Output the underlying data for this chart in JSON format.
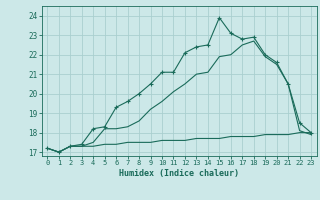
{
  "xlabel": "Humidex (Indice chaleur)",
  "bg_color": "#cce8e8",
  "grid_color": "#aacfcf",
  "line_color": "#1a6b5a",
  "xlim": [
    -0.5,
    23.5
  ],
  "ylim": [
    16.8,
    24.5
  ],
  "yticks": [
    17,
    18,
    19,
    20,
    21,
    22,
    23,
    24
  ],
  "xticks": [
    0,
    1,
    2,
    3,
    4,
    5,
    6,
    7,
    8,
    9,
    10,
    11,
    12,
    13,
    14,
    15,
    16,
    17,
    18,
    19,
    20,
    21,
    22,
    23
  ],
  "line1_x": [
    0,
    1,
    2,
    3,
    4,
    5,
    6,
    7,
    8,
    9,
    10,
    11,
    12,
    13,
    14,
    15,
    16,
    17,
    18,
    19,
    20,
    21,
    22,
    23
  ],
  "line1_y": [
    17.2,
    17.0,
    17.3,
    17.3,
    17.3,
    17.4,
    17.4,
    17.5,
    17.5,
    17.5,
    17.6,
    17.6,
    17.6,
    17.7,
    17.7,
    17.7,
    17.8,
    17.8,
    17.8,
    17.9,
    17.9,
    17.9,
    18.0,
    18.0
  ],
  "line2_x": [
    0,
    1,
    2,
    3,
    4,
    5,
    6,
    7,
    8,
    9,
    10,
    11,
    12,
    13,
    14,
    15,
    16,
    17,
    18,
    19,
    20,
    21,
    22,
    23
  ],
  "line2_y": [
    17.2,
    17.0,
    17.3,
    17.3,
    17.5,
    18.2,
    18.2,
    18.3,
    18.6,
    19.2,
    19.6,
    20.1,
    20.5,
    21.0,
    21.1,
    21.9,
    22.0,
    22.5,
    22.7,
    21.9,
    21.5,
    20.5,
    18.1,
    17.9
  ],
  "line3_x": [
    0,
    1,
    2,
    3,
    4,
    5,
    6,
    7,
    8,
    9,
    10,
    11,
    12,
    13,
    14,
    15,
    16,
    17,
    18,
    19,
    20,
    21,
    22,
    23
  ],
  "line3_y": [
    17.2,
    17.0,
    17.3,
    17.4,
    18.2,
    18.3,
    19.3,
    19.6,
    20.0,
    20.5,
    21.1,
    21.1,
    22.1,
    22.4,
    22.5,
    23.9,
    23.1,
    22.8,
    22.9,
    22.0,
    21.6,
    20.5,
    18.5,
    18.0
  ]
}
